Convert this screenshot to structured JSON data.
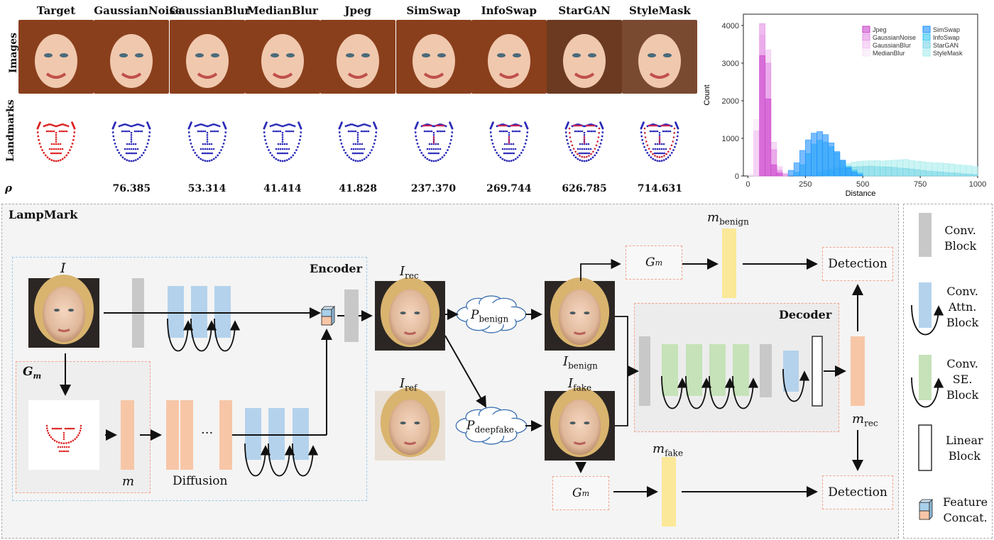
{
  "top_table": {
    "columns": [
      "Target",
      "GaussianNoise",
      "GaussianBlur",
      "MedianBlur",
      "Jpeg",
      "SimSwap",
      "InfoSwap",
      "StarGAN",
      "StyleMask"
    ],
    "row_labels": {
      "images": "Images",
      "landmarks": "Landmarks",
      "rho": "ρ"
    },
    "rho_values": [
      "",
      "76.385",
      "53.314",
      "41.414",
      "41.828",
      "237.370",
      "269.744",
      "626.785",
      "714.631"
    ]
  },
  "chart_data": {
    "type": "histogram",
    "xlabel": "Distance",
    "ylabel": "Count",
    "xlim": [
      -20,
      1000
    ],
    "ylim": [
      0,
      4300
    ],
    "xticks": [
      "0",
      "250",
      "500",
      "750",
      "1000"
    ],
    "yticks": [
      "0",
      "1000",
      "2000",
      "3000",
      "4000"
    ],
    "bin_width": 25,
    "legend": [
      "Jpeg",
      "GaussianNoise",
      "GaussianBlur",
      "MedianBlur",
      "SimSwap",
      "InfoSwap",
      "StarGAN",
      "StyleMask"
    ],
    "series": [
      {
        "name": "Jpeg",
        "color": "#cc44cc",
        "bins": [
          [
            50,
            3200
          ],
          [
            75,
            2050
          ],
          [
            100,
            300
          ],
          [
            125,
            80
          ]
        ]
      },
      {
        "name": "GaussianNoise",
        "color": "#e38fe3",
        "bins": [
          [
            50,
            4050
          ],
          [
            75,
            3000
          ],
          [
            100,
            700
          ],
          [
            125,
            150
          ],
          [
            150,
            50
          ]
        ]
      },
      {
        "name": "GaussianBlur",
        "color": "#f0c0f0",
        "bins": [
          [
            25,
            1200
          ],
          [
            50,
            3750
          ],
          [
            75,
            3350
          ],
          [
            100,
            900
          ],
          [
            125,
            250
          ],
          [
            150,
            80
          ]
        ]
      },
      {
        "name": "MedianBlur",
        "color": "#f8e6f8",
        "bins": [
          [
            0,
            60
          ],
          [
            25,
            1500
          ],
          [
            50,
            3300
          ],
          [
            75,
            2700
          ],
          [
            100,
            700
          ],
          [
            125,
            200
          ]
        ]
      },
      {
        "name": "SimSwap",
        "color": "#1e90ff",
        "bins": [
          [
            175,
            150
          ],
          [
            200,
            350
          ],
          [
            225,
            680
          ],
          [
            250,
            960
          ],
          [
            275,
            1140
          ],
          [
            300,
            1180
          ],
          [
            325,
            1100
          ],
          [
            350,
            880
          ],
          [
            375,
            650
          ],
          [
            400,
            420
          ],
          [
            425,
            220
          ],
          [
            450,
            110
          ],
          [
            475,
            40
          ]
        ]
      },
      {
        "name": "InfoSwap",
        "color": "#33c6f0",
        "bins": [
          [
            200,
            100
          ],
          [
            225,
            300
          ],
          [
            250,
            600
          ],
          [
            275,
            850
          ],
          [
            300,
            950
          ],
          [
            325,
            900
          ],
          [
            350,
            780
          ],
          [
            375,
            620
          ],
          [
            400,
            420
          ],
          [
            425,
            260
          ],
          [
            450,
            160
          ],
          [
            475,
            80
          ]
        ]
      },
      {
        "name": "StarGAN",
        "color": "#7ad6e6",
        "bins": [
          [
            300,
            110
          ],
          [
            325,
            150
          ],
          [
            350,
            170
          ],
          [
            375,
            195
          ],
          [
            400,
            210
          ],
          [
            425,
            230
          ],
          [
            450,
            240
          ],
          [
            475,
            250
          ],
          [
            500,
            255
          ],
          [
            525,
            260
          ],
          [
            550,
            250
          ],
          [
            575,
            245
          ],
          [
            600,
            240
          ],
          [
            625,
            230
          ],
          [
            650,
            210
          ],
          [
            675,
            200
          ],
          [
            700,
            185
          ],
          [
            725,
            170
          ],
          [
            750,
            150
          ],
          [
            775,
            130
          ],
          [
            800,
            120
          ],
          [
            825,
            110
          ],
          [
            850,
            95
          ],
          [
            875,
            85
          ],
          [
            900,
            75
          ],
          [
            925,
            60
          ],
          [
            950,
            50
          ],
          [
            975,
            40
          ]
        ]
      },
      {
        "name": "StyleMask",
        "color": "#a8ecec",
        "bins": [
          [
            325,
            70
          ],
          [
            350,
            150
          ],
          [
            375,
            230
          ],
          [
            400,
            290
          ],
          [
            425,
            330
          ],
          [
            450,
            370
          ],
          [
            475,
            390
          ],
          [
            500,
            400
          ],
          [
            525,
            405
          ],
          [
            550,
            410
          ],
          [
            575,
            400
          ],
          [
            600,
            410
          ],
          [
            625,
            420
          ],
          [
            650,
            430
          ],
          [
            675,
            440
          ],
          [
            700,
            410
          ],
          [
            725,
            395
          ],
          [
            750,
            380
          ],
          [
            775,
            360
          ],
          [
            800,
            350
          ],
          [
            825,
            345
          ],
          [
            850,
            335
          ],
          [
            875,
            320
          ],
          [
            900,
            300
          ],
          [
            925,
            290
          ],
          [
            950,
            280
          ],
          [
            975,
            250
          ]
        ]
      }
    ]
  },
  "diagram": {
    "title": "LampMark",
    "encoder": "Encoder",
    "decoder": "Decoder",
    "diffusion": "Diffusion",
    "ellipsis": "···",
    "sym_I": "I",
    "sym_Gm": "G",
    "sym_Gm_sub": "m",
    "sym_m": "m",
    "I_rec": "I",
    "I_rec_sub": "rec",
    "I_ref": "I",
    "I_ref_sub": "ref",
    "I_benign": "I",
    "I_benign_sub": "benign",
    "I_fake": "I",
    "I_fake_sub": "fake",
    "P_benign": "P",
    "P_benign_sub": "benign",
    "P_deepfake": "P",
    "P_deepfake_sub": "deepfake",
    "m_benign": "m",
    "m_benign_sub": "benign",
    "m_fake": "m",
    "m_fake_sub": "fake",
    "m_rec": "m",
    "m_rec_sub": "rec",
    "detection": "Detection"
  },
  "legend_panel": {
    "conv": "Conv.\nBlock",
    "attn": "Conv.\nAttn.\nBlock",
    "se": "Conv.\nSE.\nBlock",
    "linear": "Linear\nBlock",
    "concat": "Feature\nConcat."
  },
  "colors": {
    "conv": "#c8c8c8",
    "attn": "#b4d2ec",
    "se": "#c6e2b8",
    "orange": "#f7c6a7",
    "yellow": "#fbe898",
    "landmark_red": "#dd2222",
    "landmark_blue": "#2a2ab8"
  }
}
